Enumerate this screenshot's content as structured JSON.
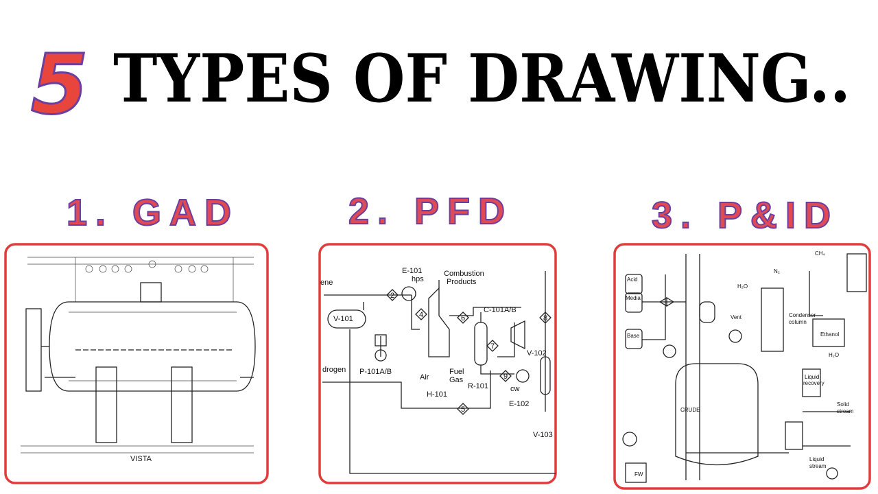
{
  "header": {
    "number": "5",
    "title": "TYPES OF DRAWING.."
  },
  "panels": [
    {
      "heading": "1. GAD",
      "labels": [
        "VISTA"
      ]
    },
    {
      "heading": "2. PFD",
      "labels": [
        "E-101",
        "hps",
        "Combustion",
        "Products",
        "ene",
        "V-101",
        "drogen",
        "P-101A/B",
        "Air",
        "Fuel",
        "Gas",
        "H-101",
        "R-101",
        "C-101A/B",
        "V-102",
        "cw",
        "E-102",
        "V-103",
        "2",
        "4",
        "6",
        "7",
        "8",
        "9",
        "5"
      ]
    },
    {
      "heading": "3. P&ID",
      "labels": [
        "Acid",
        "Media",
        "Base",
        "Vent",
        "N₂",
        "CH₄",
        "H₂O",
        "Condenser",
        "column",
        "Ethanol",
        "H₂O",
        "Liquid",
        "recovery",
        "CRUDE",
        "Solid",
        "stream",
        "Liquid",
        "stream",
        "FW"
      ]
    }
  ]
}
